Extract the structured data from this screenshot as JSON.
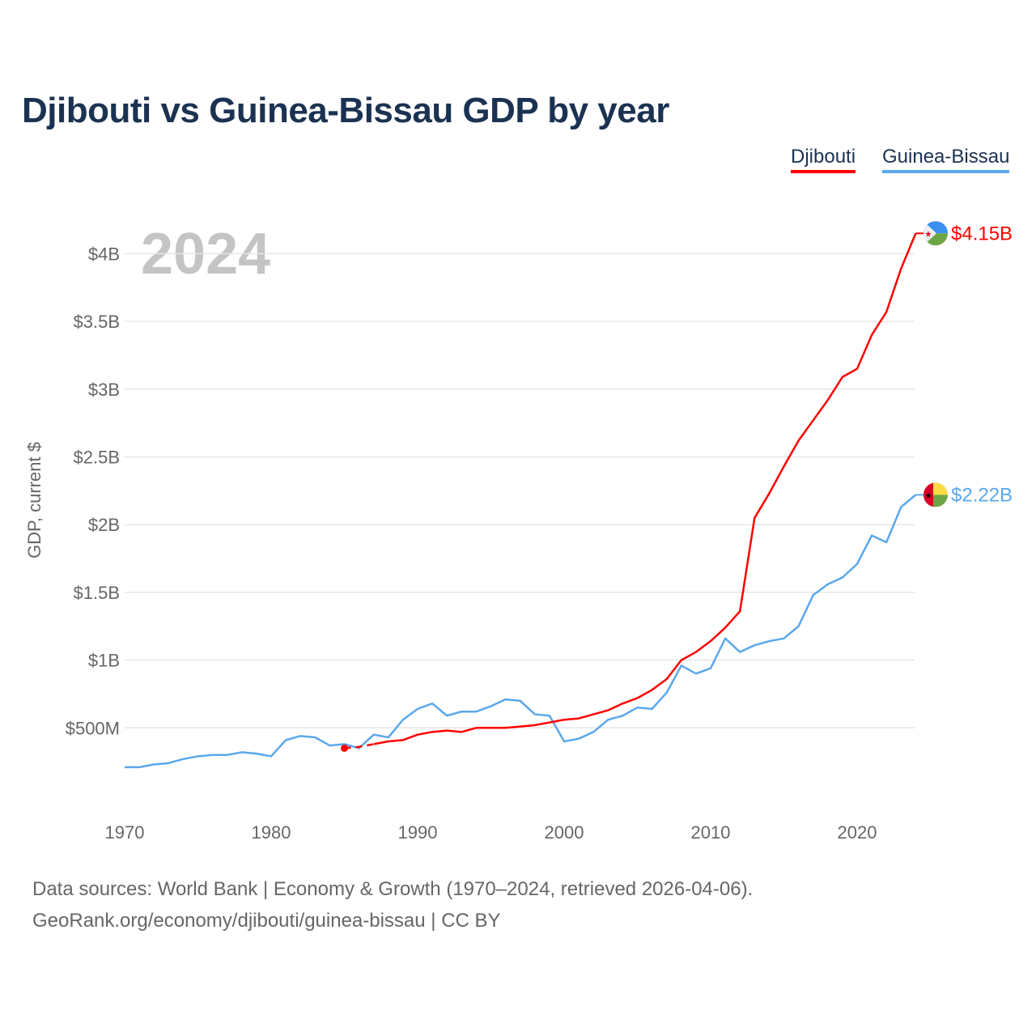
{
  "chart_data": {
    "type": "line",
    "title": "Djibouti vs Guinea-Bissau GDP by year",
    "ylabel": "GDP, current $",
    "xlabel": "",
    "year_label": "2024",
    "xlim": [
      1970,
      2024
    ],
    "ylim": [
      0,
      4.4
    ],
    "x_ticks": [
      1970,
      1980,
      1990,
      2000,
      2010,
      2020
    ],
    "x_tick_labels": [
      "1970",
      "1980",
      "1990",
      "2000",
      "2010",
      "2020"
    ],
    "y_ticks": [
      0.5,
      1,
      1.5,
      2,
      2.5,
      3,
      3.5,
      4
    ],
    "y_tick_labels": [
      "$500M",
      "$1B",
      "$1.5B",
      "$2B",
      "$2.5B",
      "$3B",
      "$3.5B",
      "$4B"
    ],
    "grid": true,
    "legend_position": "top-right",
    "unit": "billion USD",
    "series": [
      {
        "name": "Djibouti",
        "color": "#ff0000",
        "end_label": "$4.15B",
        "flag": "djibouti-flag",
        "x": [
          1985,
          1986,
          1987,
          1988,
          1989,
          1990,
          1991,
          1992,
          1993,
          1994,
          1995,
          1996,
          1997,
          1998,
          1999,
          2000,
          2001,
          2002,
          2003,
          2004,
          2005,
          2006,
          2007,
          2008,
          2009,
          2010,
          2011,
          2012,
          2013,
          2014,
          2015,
          2016,
          2017,
          2018,
          2019,
          2020,
          2021,
          2022,
          2023,
          2024
        ],
        "values": [
          0.35,
          0.36,
          0.38,
          0.4,
          0.41,
          0.45,
          0.47,
          0.48,
          0.47,
          0.5,
          0.5,
          0.5,
          0.51,
          0.52,
          0.54,
          0.56,
          0.57,
          0.6,
          0.63,
          0.68,
          0.72,
          0.78,
          0.86,
          1.0,
          1.06,
          1.14,
          1.24,
          1.36,
          2.05,
          2.23,
          2.43,
          2.62,
          2.77,
          2.92,
          3.09,
          3.15,
          3.4,
          3.57,
          3.89,
          4.15
        ]
      },
      {
        "name": "Guinea-Bissau",
        "color": "#5ba8ec",
        "end_label": "$2.22B",
        "flag": "guinea-bissau-flag",
        "x": [
          1970,
          1971,
          1972,
          1973,
          1974,
          1975,
          1976,
          1977,
          1978,
          1979,
          1980,
          1981,
          1982,
          1983,
          1984,
          1985,
          1986,
          1987,
          1988,
          1989,
          1990,
          1991,
          1992,
          1993,
          1994,
          1995,
          1996,
          1997,
          1998,
          1999,
          2000,
          2001,
          2002,
          2003,
          2004,
          2005,
          2006,
          2007,
          2008,
          2009,
          2010,
          2011,
          2012,
          2013,
          2014,
          2015,
          2016,
          2017,
          2018,
          2019,
          2020,
          2021,
          2022,
          2023,
          2024
        ],
        "values": [
          0.21,
          0.21,
          0.23,
          0.24,
          0.27,
          0.29,
          0.3,
          0.3,
          0.32,
          0.31,
          0.29,
          0.41,
          0.44,
          0.43,
          0.37,
          0.38,
          0.35,
          0.45,
          0.43,
          0.56,
          0.64,
          0.68,
          0.59,
          0.62,
          0.62,
          0.66,
          0.71,
          0.7,
          0.6,
          0.59,
          0.4,
          0.42,
          0.47,
          0.56,
          0.59,
          0.65,
          0.64,
          0.76,
          0.96,
          0.9,
          0.94,
          1.16,
          1.06,
          1.11,
          1.14,
          1.16,
          1.25,
          1.48,
          1.56,
          1.61,
          1.71,
          1.92,
          1.87,
          2.13,
          2.22
        ]
      }
    ]
  },
  "footer": {
    "line1": "Data sources: World Bank | Economy & Growth (1970–2024, retrieved 2026-04-06).",
    "line2": "GeoRank.org/economy/djibouti/guinea-bissau | CC BY"
  }
}
